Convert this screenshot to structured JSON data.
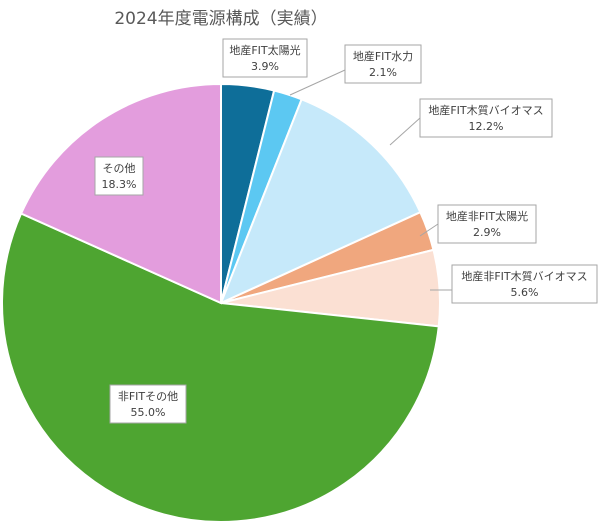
{
  "chart_data": {
    "type": "pie",
    "title": "2024年度電源構成（実績）",
    "slices": [
      {
        "name": "地産FIT太陽光",
        "value": 3.9,
        "label": "3.9%",
        "color": "#0e6e99"
      },
      {
        "name": "地産FIT水力",
        "value": 2.1,
        "label": "2.1%",
        "color": "#5cc8f2"
      },
      {
        "name": "地産FIT木質バイオマス",
        "value": 12.2,
        "label": "12.2%",
        "color": "#c6e9fa"
      },
      {
        "name": "地産非FIT太陽光",
        "value": 2.9,
        "label": "2.9%",
        "color": "#f0a77e"
      },
      {
        "name": "地産非FIT木質バイオマス",
        "value": 5.6,
        "label": "5.6%",
        "color": "#fbe0d3"
      },
      {
        "name": "非FITその他",
        "value": 55.0,
        "label": "55.0%",
        "color": "#4ea531"
      },
      {
        "name": "その他",
        "value": 18.3,
        "label": "18.3%",
        "color": "#e39ddd"
      }
    ],
    "start_angle": "12 o'clock",
    "direction": "clockwise",
    "legend": "none"
  }
}
